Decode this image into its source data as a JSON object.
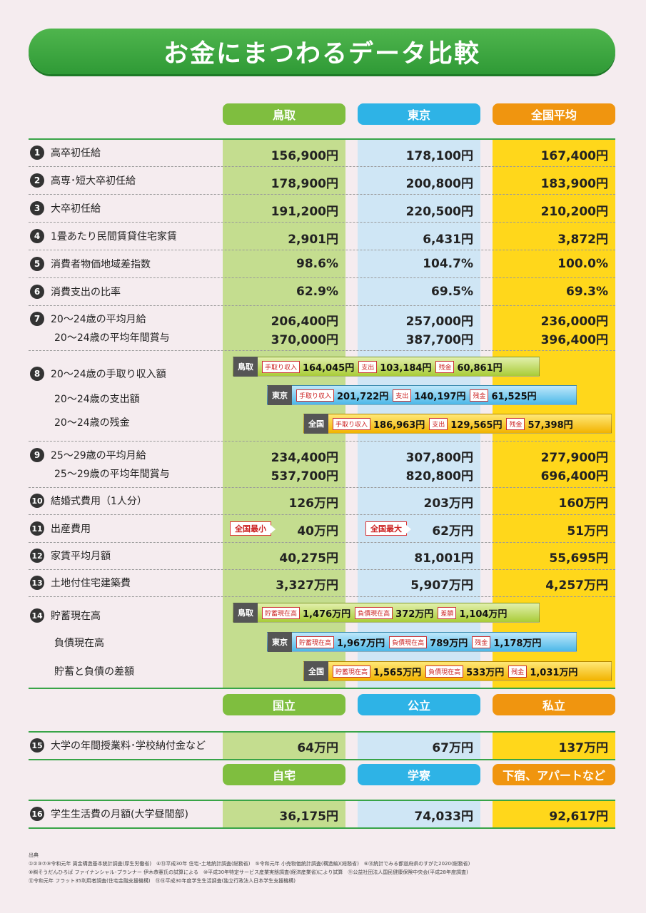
{
  "title": "お金にまつわるデータ比較",
  "headers": {
    "c1": "鳥取",
    "c2": "東京",
    "c3": "全国平均"
  },
  "rows": [
    {
      "num": "1",
      "label": "高卒初任給",
      "v": [
        "156,900円",
        "178,100円",
        "167,400円"
      ]
    },
    {
      "num": "2",
      "label": "高専･短大卒初任給",
      "v": [
        "178,900円",
        "200,800円",
        "183,900円"
      ]
    },
    {
      "num": "3",
      "label": "大卒初任給",
      "v": [
        "191,200円",
        "220,500円",
        "210,200円"
      ]
    },
    {
      "num": "4",
      "label": "1畳あたり民間賃貸住宅家賃",
      "v": [
        "2,901円",
        "6,431円",
        "3,872円"
      ]
    },
    {
      "num": "5",
      "label": "消費者物価地域差指数",
      "v": [
        "98.6%",
        "104.7%",
        "100.0%"
      ]
    },
    {
      "num": "6",
      "label": "消費支出の比率",
      "v": [
        "62.9%",
        "69.5%",
        "69.3%"
      ]
    }
  ],
  "row7": {
    "num": "7",
    "label1": "20～24歳の平均月給",
    "label2": "20～24歳の平均年間賞与",
    "v1": [
      "206,400円",
      "257,000円",
      "236,000円"
    ],
    "v2": [
      "370,000円",
      "387,700円",
      "396,400円"
    ]
  },
  "row8": {
    "num": "8",
    "label1": "20～24歳の手取り収入額",
    "label2": "20～24歳の支出額",
    "label3": "20～24歳の残金",
    "bars": [
      {
        "tag": "鳥取",
        "l1": "手取り収入",
        "v1": "164,045円",
        "l2": "支出",
        "v2": "103,184円",
        "l3": "残金",
        "v3": "60,861円"
      },
      {
        "tag": "東京",
        "l1": "手取り収入",
        "v1": "201,722円",
        "l2": "支出",
        "v2": "140,197円",
        "l3": "残金",
        "v3": "61,525円"
      },
      {
        "tag": "全国",
        "l1": "手取り収入",
        "v1": "186,963円",
        "l2": "支出",
        "v2": "129,565円",
        "l3": "残金",
        "v3": "57,398円"
      }
    ]
  },
  "row9": {
    "num": "9",
    "label1": "25～29歳の平均月給",
    "label2": "25～29歳の平均年間賞与",
    "v1": [
      "234,400円",
      "307,800円",
      "277,900円"
    ],
    "v2": [
      "537,700円",
      "820,800円",
      "696,400円"
    ]
  },
  "row10": {
    "num": "10",
    "label": "結婚式費用（1人分）",
    "v": [
      "126万円",
      "203万円",
      "160万円"
    ]
  },
  "row11": {
    "num": "11",
    "label": "出産費用",
    "v": [
      "40万円",
      "62万円",
      "51万円"
    ],
    "badge1": "全国最小",
    "badge2": "全国最大"
  },
  "row12": {
    "num": "12",
    "label": "家賃平均月額",
    "v": [
      "40,275円",
      "81,001円",
      "55,695円"
    ]
  },
  "row13": {
    "num": "13",
    "label": "土地付住宅建築費",
    "v": [
      "3,327万円",
      "5,907万円",
      "4,257万円"
    ]
  },
  "row14": {
    "num": "14",
    "label1": "貯蓄現在高",
    "label2": "負債現在高",
    "label3": "貯蓄と負債の差額",
    "bars": [
      {
        "tag": "鳥取",
        "l1": "貯蓄現在高",
        "v1": "1,476万円",
        "l2": "負債現在高",
        "v2": "372万円",
        "l3": "差額",
        "v3": "1,104万円"
      },
      {
        "tag": "東京",
        "l1": "貯蓄現在高",
        "v1": "1,967万円",
        "l2": "負債現在高",
        "v2": "789万円",
        "l3": "残金",
        "v3": "1,178万円"
      },
      {
        "tag": "全国",
        "l1": "貯蓄現在高",
        "v1": "1,565万円",
        "l2": "負債現在高",
        "v2": "533万円",
        "l3": "残金",
        "v3": "1,031万円"
      }
    ]
  },
  "headers2": {
    "c1": "国立",
    "c2": "公立",
    "c3": "私立"
  },
  "row15": {
    "num": "15",
    "label": "大学の年間授業料･学校納付金など",
    "v": [
      "64万円",
      "67万円",
      "137万円"
    ]
  },
  "headers3": {
    "c1": "自宅",
    "c2": "学寮",
    "c3": "下宿、アパートなど"
  },
  "row16": {
    "num": "16",
    "label": "学生生活費の月額(大学昼間部)",
    "v": [
      "36,175円",
      "74,033円",
      "92,617円"
    ]
  },
  "source": {
    "heading": "出典",
    "line1": "①②③⑦⑨令和元年 賃金構造基本統計調査(厚生労働省)　④⑬平成30年 住宅･土地統計調査(総務省)　⑤令和元年 小売物価統計調査(構造編)(総務省)　⑥⑭統計でみる都道府県のすがた2020(総務省)",
    "line2": "⑧㈱そうだんひろば ファイナンシャル･プランナー 伊木恭憲氏の試算による　⑩平成30年特定サービス産業実態調査(経済産業省)により試算　⑪公益社団法人国民健康保険中央会(平成28年度調査)",
    "line3": "⑫令和元年 フラット35利用者調査(住宅金融支援機構)　⑮⑯平成30年度学生生活調査(独立行政法人日本学生支援機構)"
  }
}
